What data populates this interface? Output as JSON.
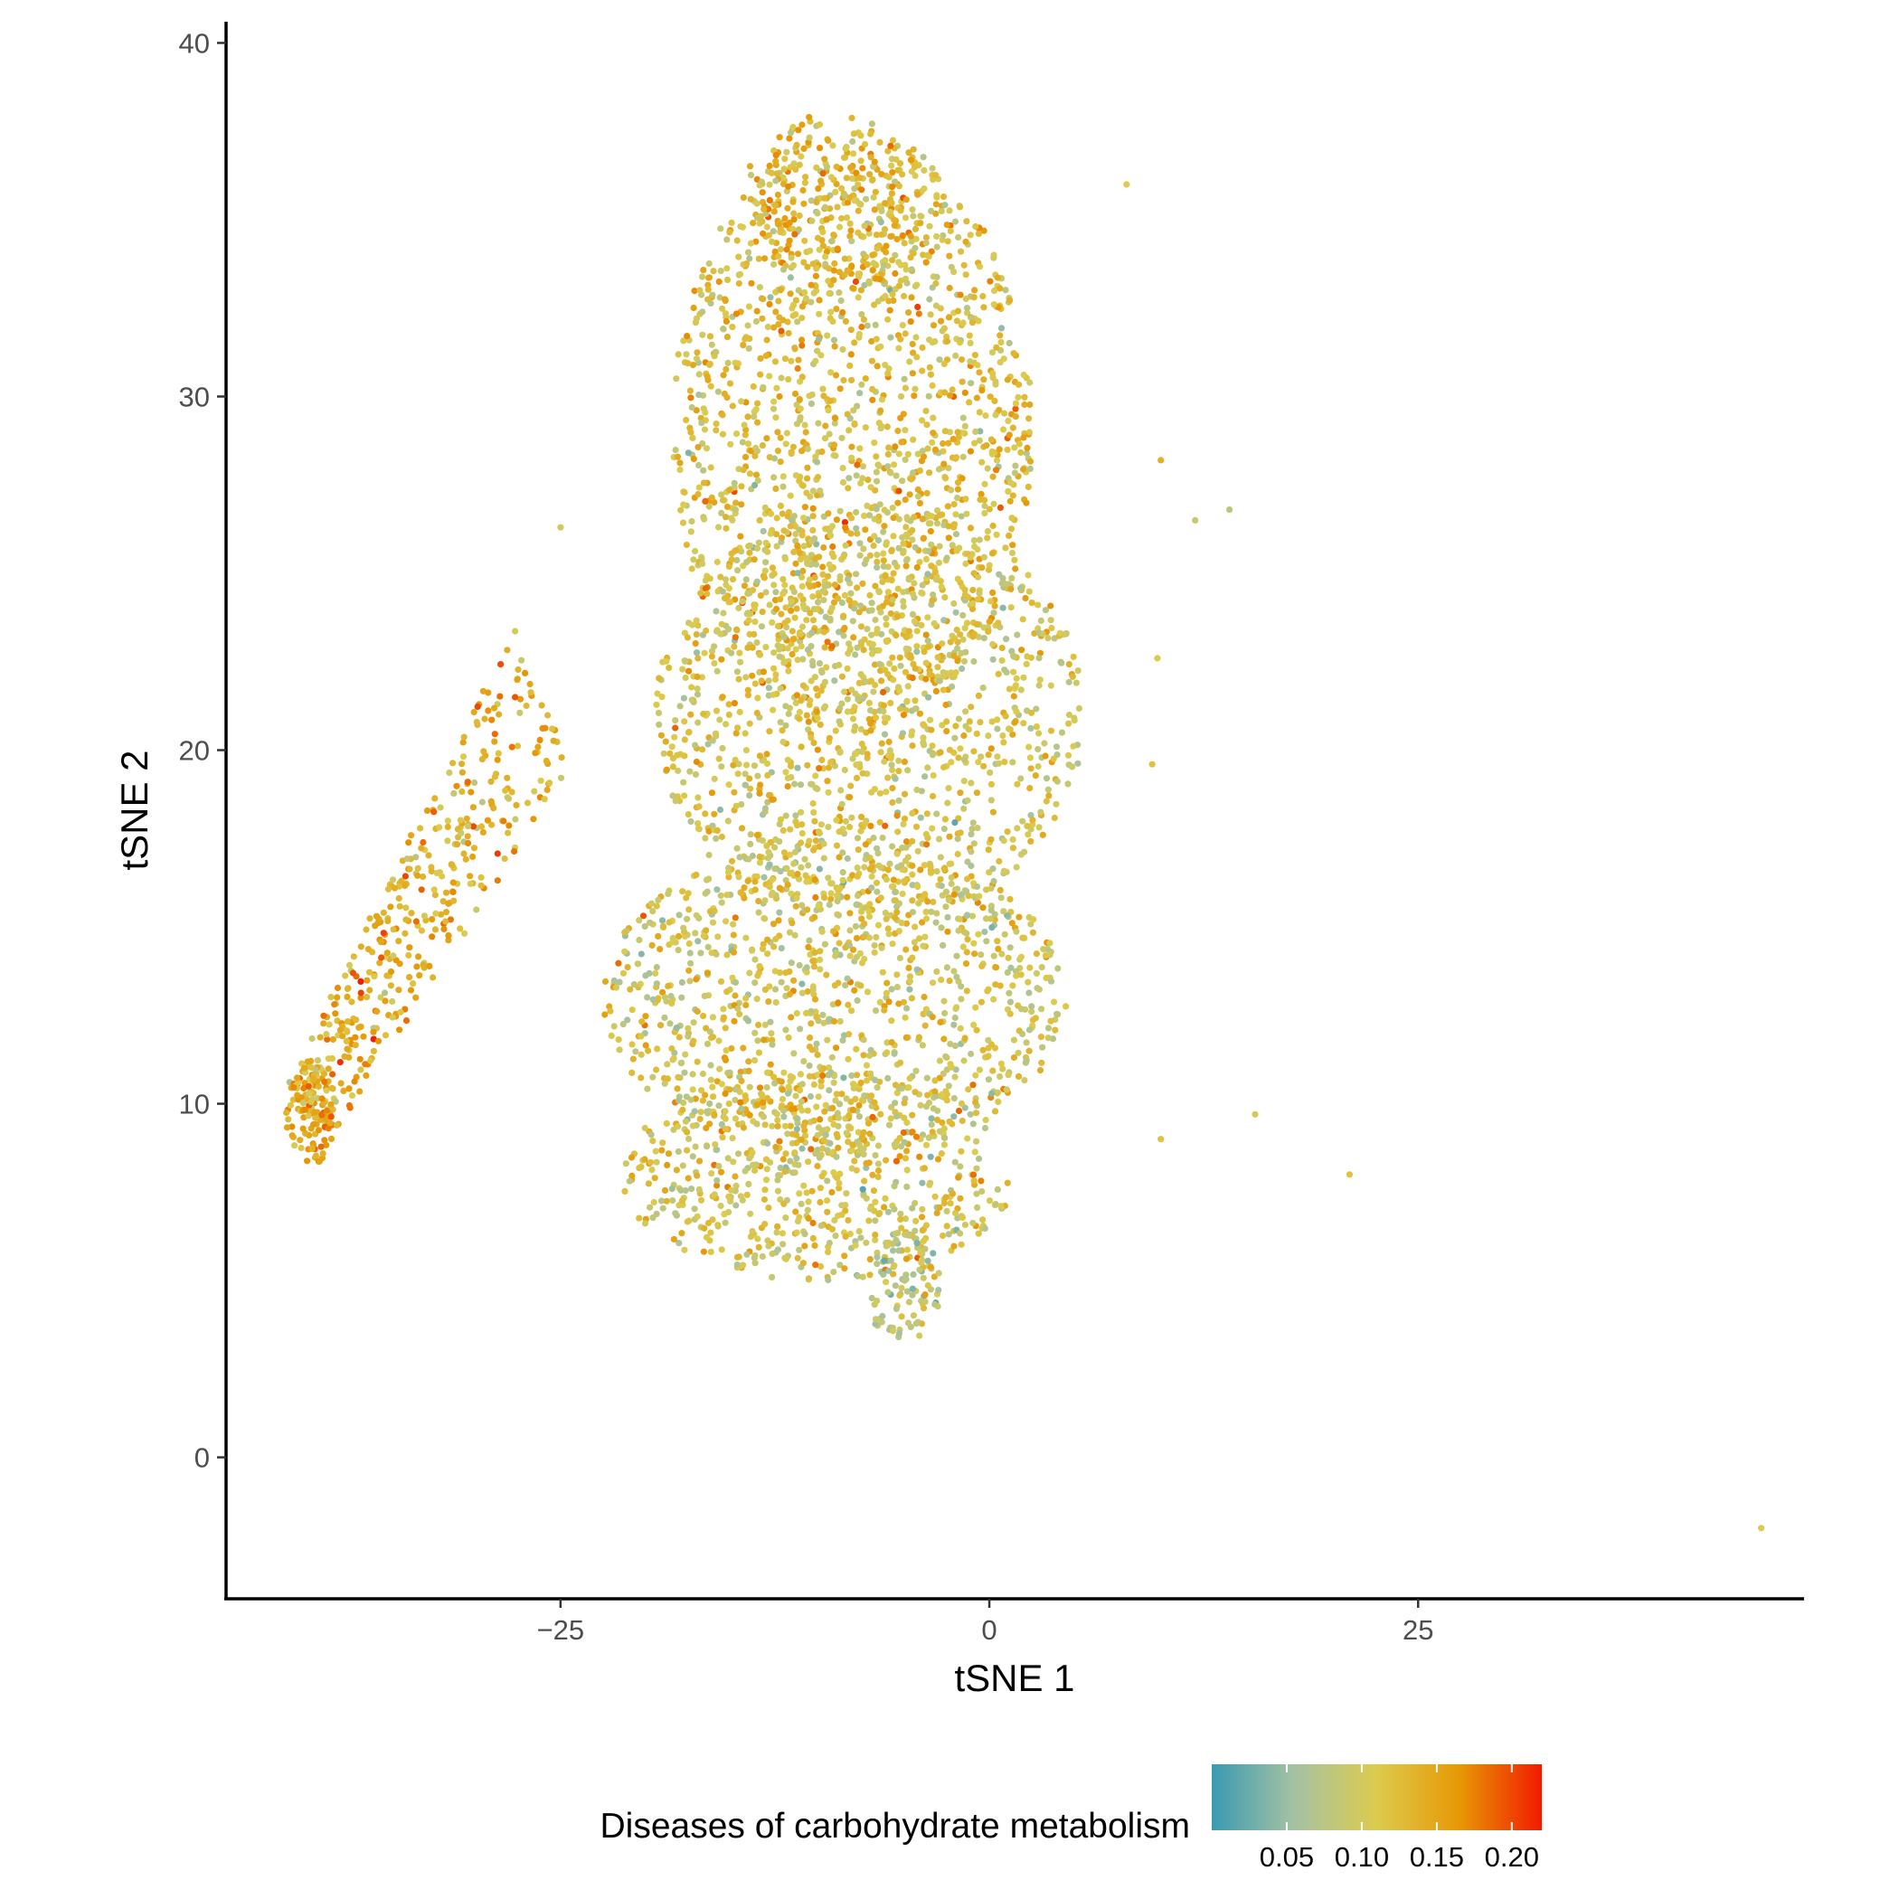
{
  "chart_data": {
    "type": "scatter",
    "title": "",
    "xlabel": "tSNE 1",
    "ylabel": "tSNE 2",
    "xlim": [
      -44.5,
      47.5
    ],
    "ylim": [
      -4.0,
      40.6
    ],
    "x_ticks": [
      -25,
      0,
      25
    ],
    "x_tick_labels": [
      "−25",
      "0",
      "25"
    ],
    "y_ticks": [
      0,
      10,
      20,
      30,
      40
    ],
    "y_tick_labels": [
      "0",
      "10",
      "20",
      "30",
      "40"
    ],
    "grid": false,
    "legend": {
      "title": "Diseases of carbohydrate metabolism",
      "position": "bottom",
      "range": [
        0.0,
        0.22
      ],
      "ticks": [
        0.05,
        0.1,
        0.15,
        0.2
      ],
      "tick_labels": [
        "0.05",
        "0.10",
        "0.15",
        "0.20"
      ],
      "colors": [
        "#3A9AB2",
        "#A5C2A3",
        "#DCCB4E",
        "#E79805",
        "#F11B00"
      ]
    },
    "n_points": 5200,
    "regions": [
      {
        "shape": "ellipse",
        "cx": -8,
        "cy": 29,
        "rx": 10.5,
        "ry": 8.5,
        "fraction": 0.3,
        "mean_value": 0.12
      },
      {
        "shape": "ellipse",
        "cx": -7,
        "cy": 21,
        "rx": 12.5,
        "ry": 6,
        "fraction": 0.22,
        "mean_value": 0.11
      },
      {
        "shape": "ellipse",
        "cx": -9,
        "cy": 13,
        "rx": 13.5,
        "ry": 4.5,
        "fraction": 0.2,
        "mean_value": 0.11
      },
      {
        "shape": "ellipse",
        "cx": -10,
        "cy": 8,
        "rx": 11.5,
        "ry": 3,
        "fraction": 0.12,
        "mean_value": 0.11
      },
      {
        "shape": "ellipse",
        "cx": -5,
        "cy": 4.8,
        "rx": 2.2,
        "ry": 1.6,
        "fraction": 0.02,
        "mean_value": 0.09
      },
      {
        "shape": "ellipse",
        "cx": -9,
        "cy": 35.5,
        "rx": 5.5,
        "ry": 2.5,
        "fraction": 0.04,
        "mean_value": 0.13
      },
      {
        "shape": "arm",
        "from": [
          -40,
          9.5
        ],
        "to": [
          -26,
          21.5
        ],
        "width": 2.0,
        "fraction": 0.08,
        "mean_value": 0.14
      },
      {
        "shape": "ellipse",
        "cx": -39.5,
        "cy": 9.7,
        "rx": 1.5,
        "ry": 1.4,
        "fraction": 0.02,
        "mean_value": 0.14
      }
    ],
    "outliers": [
      {
        "x": 45,
        "y": -2,
        "value": 0.11
      },
      {
        "x": 21,
        "y": 8,
        "value": 0.12
      },
      {
        "x": 15.5,
        "y": 9.7,
        "value": 0.1
      },
      {
        "x": 14,
        "y": 26.8,
        "value": 0.08
      },
      {
        "x": 12,
        "y": 26.5,
        "value": 0.09
      },
      {
        "x": 10,
        "y": 28.2,
        "value": 0.14
      },
      {
        "x": 9.8,
        "y": 22.6,
        "value": 0.11
      },
      {
        "x": 9.5,
        "y": 19.6,
        "value": 0.12
      },
      {
        "x": 10,
        "y": 9.0,
        "value": 0.12
      },
      {
        "x": 8,
        "y": 36,
        "value": 0.11
      },
      {
        "x": -25,
        "y": 26.3,
        "value": 0.1
      }
    ]
  }
}
